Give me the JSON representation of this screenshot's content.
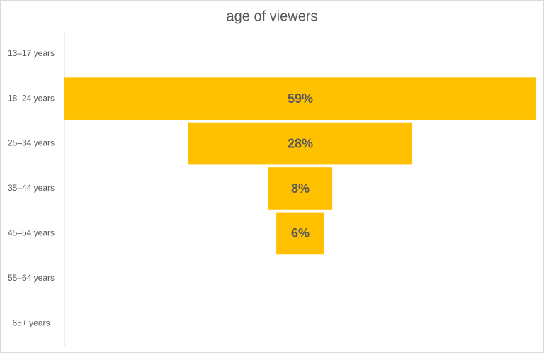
{
  "chart_data": {
    "type": "funnel",
    "title": "age of viewers",
    "categories": [
      "13–17 years",
      "18–24 years",
      "25–34 years",
      "35–44 years",
      "45–54 years",
      "55–64 years",
      "65+ years"
    ],
    "values": [
      null,
      59,
      28,
      8,
      6,
      null,
      null
    ],
    "value_labels": [
      null,
      "59%",
      "28%",
      "8%",
      "6%",
      null,
      null
    ],
    "color": "#ffc000"
  }
}
